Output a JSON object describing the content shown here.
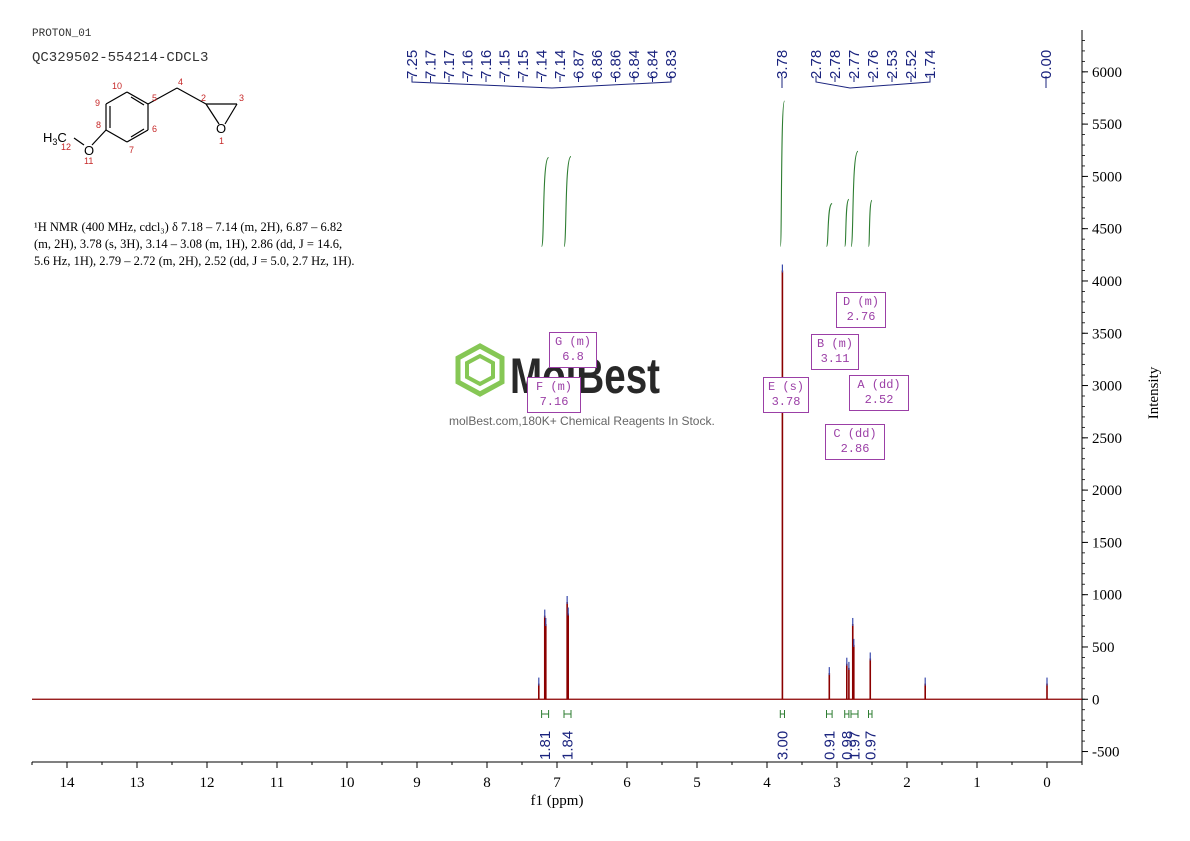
{
  "header": {
    "experiment": "PROTON_01",
    "sample": "QC329502-554214-CDCL3"
  },
  "structure": {
    "atom_numbers": [
      "10",
      "9",
      "5",
      "4",
      "2",
      "3",
      "8",
      "6",
      "7",
      "1",
      "11",
      "12"
    ],
    "labels": {
      "ch3": "H3C",
      "o_ether": "O",
      "o_epoxide": "O"
    }
  },
  "description": {
    "line1": "¹H NMR (400 MHz, cdcl₃) δ 7.18 – 7.14 (m, 2H), 6.87 – 6.82",
    "line2": "(m, 2H), 3.78 (s, 3H), 3.14 – 3.08 (m, 1H), 2.86 (dd, J = 14.6,",
    "line3": "5.6 Hz, 1H), 2.79 – 2.72 (m, 2H), 2.52 (dd, J = 5.0, 2.7 Hz, 1H)."
  },
  "watermark": {
    "brand": "MolBest",
    "tagline": "molBest.com,180K+ Chemical Reagents In Stock."
  },
  "multiplets": [
    {
      "letter": "G",
      "mult": "m",
      "shift": "6.8"
    },
    {
      "letter": "F",
      "mult": "m",
      "shift": "7.16"
    },
    {
      "letter": "E",
      "mult": "s",
      "shift": "3.78"
    },
    {
      "letter": "B",
      "mult": "m",
      "shift": "3.11"
    },
    {
      "letter": "D",
      "mult": "m",
      "shift": "2.76"
    },
    {
      "letter": "A",
      "mult": "dd",
      "shift": "2.52"
    },
    {
      "letter": "C",
      "mult": "dd",
      "shift": "2.86"
    }
  ],
  "colors": {
    "spectrum": "#8b0000",
    "peak_labels": "#1a237e",
    "integral": "#2e7d32",
    "multiplet": "#9b3fa6",
    "watermark_green": "#7ac143"
  },
  "chart_data": {
    "type": "line",
    "xlabel": "f1 (ppm)",
    "ylabel": "Intensity",
    "xlim": [
      14.5,
      -0.5
    ],
    "ylim": [
      -600,
      6400
    ],
    "x_ticks": [
      14,
      13,
      12,
      11,
      10,
      9,
      8,
      7,
      6,
      5,
      4,
      3,
      2,
      1,
      0
    ],
    "y_ticks": [
      -500,
      0,
      500,
      1000,
      1500,
      2000,
      2500,
      3000,
      3500,
      4000,
      4500,
      5000,
      5500,
      6000
    ],
    "peak_labels_group1": [
      "7.25",
      "7.17",
      "7.17",
      "7.16",
      "7.16",
      "7.15",
      "7.15",
      "7.14",
      "7.14",
      "6.87",
      "6.86",
      "6.86",
      "6.84",
      "6.84",
      "6.83"
    ],
    "peak_labels_group2": [
      "3.78"
    ],
    "peak_labels_group3": [
      "2.78",
      "2.78",
      "2.77",
      "2.76",
      "2.53",
      "2.52",
      "1.74"
    ],
    "peak_labels_group4": [
      "0.00"
    ],
    "peaks": [
      {
        "ppm": 7.26,
        "intensity": 150
      },
      {
        "ppm": 7.175,
        "intensity": 800
      },
      {
        "ppm": 7.16,
        "intensity": 720
      },
      {
        "ppm": 6.855,
        "intensity": 930
      },
      {
        "ppm": 6.84,
        "intensity": 820
      },
      {
        "ppm": 3.78,
        "intensity": 4100
      },
      {
        "ppm": 3.11,
        "intensity": 250
      },
      {
        "ppm": 2.86,
        "intensity": 340
      },
      {
        "ppm": 2.83,
        "intensity": 300
      },
      {
        "ppm": 2.775,
        "intensity": 720
      },
      {
        "ppm": 2.76,
        "intensity": 520
      },
      {
        "ppm": 2.525,
        "intensity": 390
      },
      {
        "ppm": 1.74,
        "intensity": 150
      },
      {
        "ppm": 0.0,
        "intensity": 150
      }
    ],
    "integrals": [
      {
        "from": 7.22,
        "to": 7.12,
        "value": "1.81"
      },
      {
        "from": 6.9,
        "to": 6.8,
        "value": "1.84"
      },
      {
        "from": 3.81,
        "to": 3.75,
        "value": "3.00"
      },
      {
        "from": 3.15,
        "to": 3.07,
        "value": "0.91"
      },
      {
        "from": 2.89,
        "to": 2.83,
        "value": "0.98"
      },
      {
        "from": 2.8,
        "to": 2.7,
        "value": "1.97"
      },
      {
        "from": 2.55,
        "to": 2.5,
        "value": "0.97"
      }
    ]
  }
}
